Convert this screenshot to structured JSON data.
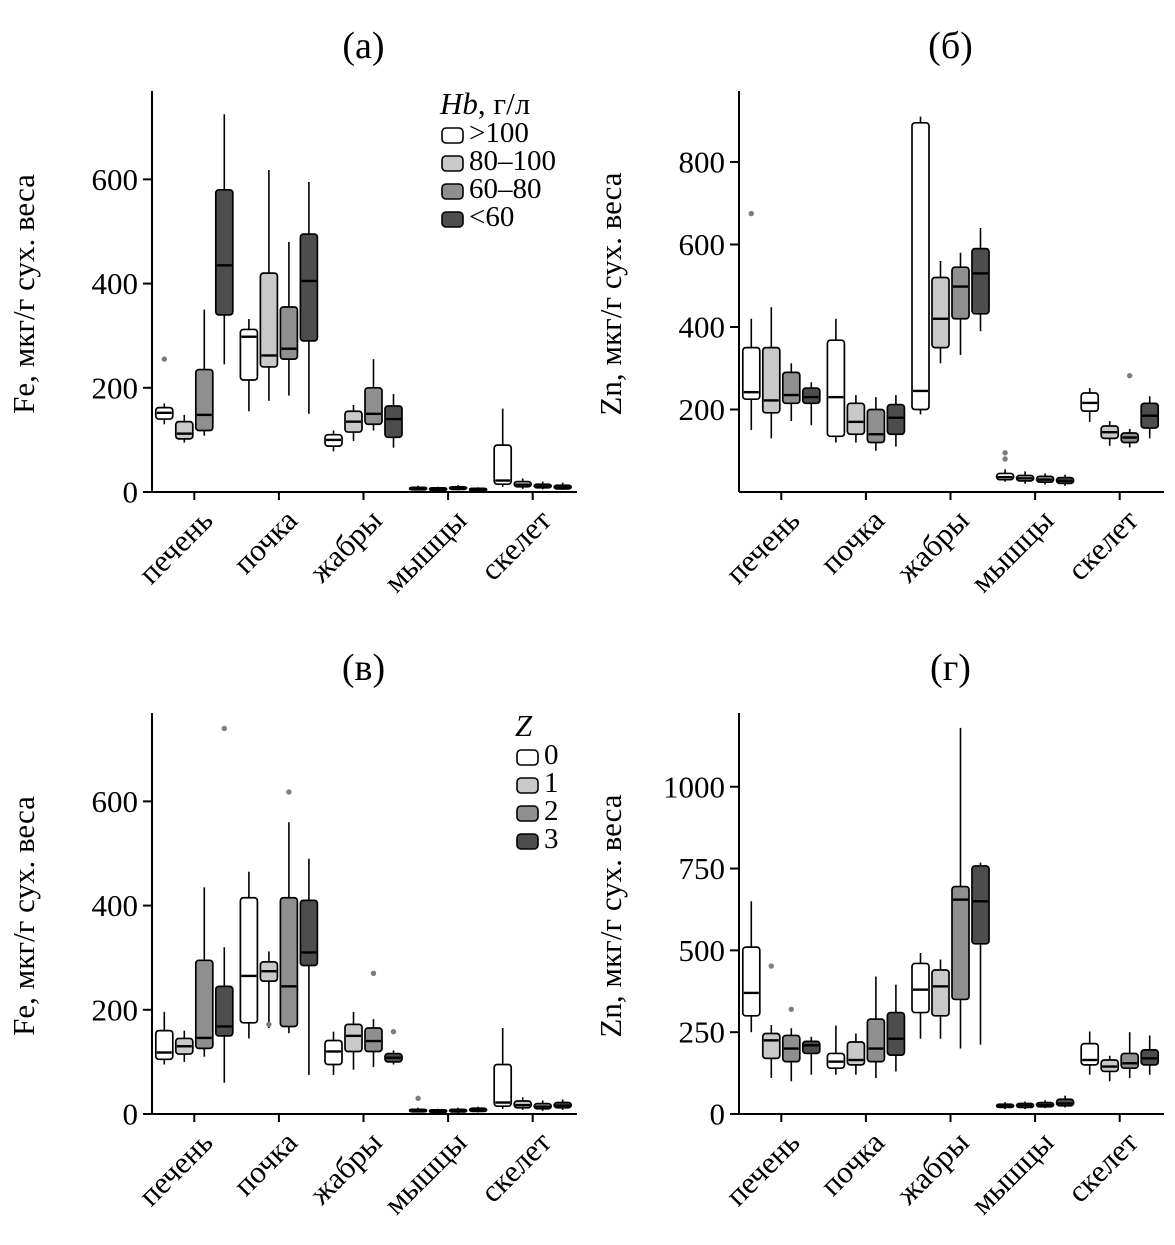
{
  "page": {
    "background": "#ffffff"
  },
  "colors": {
    "box_fills": [
      "#ffffff",
      "#c9c9c9",
      "#8f8f8f",
      "#4d4d4d"
    ],
    "box_stroke": "#000000",
    "outlier_dot": "#7d7d7d",
    "axis": "#000000",
    "text": "#000000"
  },
  "chart_data": [
    {
      "id": "a",
      "type": "box",
      "title": "(а)",
      "ylabel": "Fe, мкг/г сух. веса",
      "categories": [
        "печень",
        "почка",
        "жабры",
        "мышцы",
        "скелет"
      ],
      "ylim": [
        0,
        760
      ],
      "yticks": [
        0,
        200,
        400,
        600
      ],
      "grid": false,
      "legend": {
        "position": "top-right",
        "title_italic": "Hb",
        "title_rest": ", г/л",
        "entries": [
          ">100",
          "80–100",
          "60–80",
          "<60"
        ]
      },
      "series": [
        {
          "name": ">100",
          "boxes": [
            {
              "min": 130,
              "q1": 140,
              "med": 152,
              "q3": 162,
              "max": 170,
              "out": [
                255
              ]
            },
            {
              "min": 155,
              "q1": 215,
              "med": 298,
              "q3": 312,
              "max": 332
            },
            {
              "min": 78,
              "q1": 88,
              "med": 100,
              "q3": 110,
              "max": 118
            },
            {
              "min": 3,
              "q1": 5,
              "med": 7,
              "q3": 9,
              "max": 12
            },
            {
              "min": 10,
              "q1": 15,
              "med": 22,
              "q3": 90,
              "max": 160
            }
          ]
        },
        {
          "name": "80–100",
          "boxes": [
            {
              "min": 95,
              "q1": 102,
              "med": 112,
              "q3": 135,
              "max": 148
            },
            {
              "min": 175,
              "q1": 240,
              "med": 262,
              "q3": 420,
              "max": 618
            },
            {
              "min": 98,
              "q1": 115,
              "med": 135,
              "q3": 155,
              "max": 167
            },
            {
              "min": 3,
              "q1": 4,
              "med": 6,
              "q3": 8,
              "max": 10
            },
            {
              "min": 6,
              "q1": 10,
              "med": 14,
              "q3": 20,
              "max": 26
            }
          ]
        },
        {
          "name": "60–80",
          "boxes": [
            {
              "min": 108,
              "q1": 118,
              "med": 148,
              "q3": 235,
              "max": 350
            },
            {
              "min": 185,
              "q1": 255,
              "med": 275,
              "q3": 355,
              "max": 480
            },
            {
              "min": 118,
              "q1": 130,
              "med": 150,
              "q3": 200,
              "max": 255
            },
            {
              "min": 3,
              "q1": 5,
              "med": 7,
              "q3": 10,
              "max": 13
            },
            {
              "min": 5,
              "q1": 8,
              "med": 11,
              "q3": 15,
              "max": 20
            }
          ]
        },
        {
          "name": "<60",
          "boxes": [
            {
              "min": 245,
              "q1": 340,
              "med": 435,
              "q3": 580,
              "max": 725
            },
            {
              "min": 150,
              "q1": 290,
              "med": 405,
              "q3": 495,
              "max": 595
            },
            {
              "min": 85,
              "q1": 105,
              "med": 140,
              "q3": 165,
              "max": 188
            },
            {
              "min": 2,
              "q1": 4,
              "med": 5,
              "q3": 7,
              "max": 9
            },
            {
              "min": 4,
              "q1": 6,
              "med": 9,
              "q3": 13,
              "max": 18
            }
          ]
        }
      ]
    },
    {
      "id": "b",
      "type": "box",
      "title": "(б)",
      "ylabel": "Zn, мкг/г сух. веса",
      "categories": [
        "печень",
        "почка",
        "жабры",
        "мышцы",
        "скелет"
      ],
      "ylim": [
        0,
        960
      ],
      "yticks": [
        200,
        400,
        600,
        800
      ],
      "grid": false,
      "legend": null,
      "series": [
        {
          "name": ">100",
          "boxes": [
            {
              "min": 150,
              "q1": 225,
              "med": 242,
              "q3": 350,
              "max": 420,
              "out": [
                675
              ]
            },
            {
              "min": 120,
              "q1": 135,
              "med": 230,
              "q3": 368,
              "max": 420
            },
            {
              "min": 188,
              "q1": 200,
              "med": 245,
              "q3": 895,
              "max": 910
            },
            {
              "min": 25,
              "q1": 30,
              "med": 36,
              "q3": 45,
              "max": 55,
              "out": [
                80,
                95
              ]
            },
            {
              "min": 170,
              "q1": 196,
              "med": 216,
              "q3": 240,
              "max": 252
            }
          ]
        },
        {
          "name": "80–100",
          "boxes": [
            {
              "min": 130,
              "q1": 192,
              "med": 222,
              "q3": 350,
              "max": 448
            },
            {
              "min": 120,
              "q1": 140,
              "med": 170,
              "q3": 215,
              "max": 235
            },
            {
              "min": 312,
              "q1": 350,
              "med": 420,
              "q3": 520,
              "max": 560
            },
            {
              "min": 20,
              "q1": 27,
              "med": 33,
              "q3": 40,
              "max": 50
            },
            {
              "min": 112,
              "q1": 130,
              "med": 145,
              "q3": 160,
              "max": 172
            }
          ]
        },
        {
          "name": "60–80",
          "boxes": [
            {
              "min": 172,
              "q1": 215,
              "med": 235,
              "q3": 290,
              "max": 312
            },
            {
              "min": 100,
              "q1": 120,
              "med": 140,
              "q3": 200,
              "max": 230
            },
            {
              "min": 332,
              "q1": 420,
              "med": 498,
              "q3": 545,
              "max": 580
            },
            {
              "min": 18,
              "q1": 24,
              "med": 30,
              "q3": 38,
              "max": 45
            },
            {
              "min": 108,
              "q1": 120,
              "med": 132,
              "q3": 143,
              "max": 153,
              "out": [
                282
              ]
            }
          ]
        },
        {
          "name": "<60",
          "boxes": [
            {
              "min": 162,
              "q1": 215,
              "med": 230,
              "q3": 252,
              "max": 266
            },
            {
              "min": 110,
              "q1": 140,
              "med": 180,
              "q3": 212,
              "max": 235
            },
            {
              "min": 390,
              "q1": 432,
              "med": 530,
              "q3": 590,
              "max": 640
            },
            {
              "min": 15,
              "q1": 21,
              "med": 27,
              "q3": 35,
              "max": 42
            },
            {
              "min": 130,
              "q1": 155,
              "med": 185,
              "q3": 215,
              "max": 232
            }
          ]
        }
      ]
    },
    {
      "id": "v",
      "type": "box",
      "title": "(в)",
      "ylabel": "Fe, мкг/г сух. веса",
      "categories": [
        "печень",
        "почка",
        "жабры",
        "мышцы",
        "скелет"
      ],
      "ylim": [
        0,
        760
      ],
      "yticks": [
        0,
        200,
        400,
        600
      ],
      "grid": false,
      "legend": {
        "position": "top-right",
        "title_italic": "Z",
        "title_rest": "",
        "entries": [
          "0",
          "1",
          "2",
          "3"
        ]
      },
      "series": [
        {
          "name": "0",
          "boxes": [
            {
              "min": 95,
              "q1": 105,
              "med": 118,
              "q3": 160,
              "max": 196
            },
            {
              "min": 145,
              "q1": 175,
              "med": 265,
              "q3": 415,
              "max": 465
            },
            {
              "min": 75,
              "q1": 95,
              "med": 120,
              "q3": 141,
              "max": 158
            },
            {
              "min": 3,
              "q1": 5,
              "med": 7,
              "q3": 9,
              "max": 12,
              "out": [
                30
              ]
            },
            {
              "min": 10,
              "q1": 15,
              "med": 22,
              "q3": 95,
              "max": 165
            }
          ]
        },
        {
          "name": "1",
          "boxes": [
            {
              "min": 100,
              "q1": 115,
              "med": 130,
              "q3": 145,
              "max": 160
            },
            {
              "min": 165,
              "q1": 255,
              "med": 274,
              "q3": 292,
              "max": 312,
              "out": [
                172
              ]
            },
            {
              "min": 85,
              "q1": 120,
              "med": 150,
              "q3": 172,
              "max": 196
            },
            {
              "min": 3,
              "q1": 4,
              "med": 6,
              "q3": 8,
              "max": 10
            },
            {
              "min": 8,
              "q1": 12,
              "med": 17,
              "q3": 25,
              "max": 32
            }
          ]
        },
        {
          "name": "2",
          "boxes": [
            {
              "min": 110,
              "q1": 126,
              "med": 146,
              "q3": 295,
              "max": 435
            },
            {
              "min": 155,
              "q1": 168,
              "med": 245,
              "q3": 415,
              "max": 560,
              "out": [
                618
              ]
            },
            {
              "min": 90,
              "q1": 120,
              "med": 140,
              "q3": 165,
              "max": 182,
              "out": [
                270
              ]
            },
            {
              "min": 2,
              "q1": 4,
              "med": 6,
              "q3": 9,
              "max": 12
            },
            {
              "min": 6,
              "q1": 10,
              "med": 14,
              "q3": 20,
              "max": 26
            }
          ]
        },
        {
          "name": "3",
          "boxes": [
            {
              "min": 60,
              "q1": 150,
              "med": 168,
              "q3": 245,
              "max": 320,
              "out": [
                740
              ]
            },
            {
              "min": 75,
              "q1": 285,
              "med": 310,
              "q3": 410,
              "max": 490
            },
            {
              "min": 95,
              "q1": 100,
              "med": 108,
              "q3": 116,
              "max": 122,
              "out": [
                158
              ]
            },
            {
              "min": 3,
              "q1": 5,
              "med": 8,
              "q3": 11,
              "max": 14
            },
            {
              "min": 8,
              "q1": 12,
              "med": 16,
              "q3": 22,
              "max": 28
            }
          ]
        }
      ]
    },
    {
      "id": "g",
      "type": "box",
      "title": "(г)",
      "ylabel": "Zn, мкг/г сух. веса",
      "categories": [
        "печень",
        "почка",
        "жабры",
        "мышцы",
        "скелет"
      ],
      "ylim": [
        0,
        1210
      ],
      "yticks": [
        0,
        250,
        500,
        750,
        1000
      ],
      "grid": false,
      "legend": null,
      "series": [
        {
          "name": "0",
          "boxes": [
            {
              "min": 250,
              "q1": 300,
              "med": 370,
              "q3": 510,
              "max": 650
            },
            {
              "min": 120,
              "q1": 140,
              "med": 160,
              "q3": 185,
              "max": 270
            },
            {
              "min": 230,
              "q1": 310,
              "med": 380,
              "q3": 460,
              "max": 492
            },
            {
              "min": 15,
              "q1": 20,
              "med": 25,
              "q3": 30,
              "max": 36
            },
            {
              "min": 120,
              "q1": 150,
              "med": 165,
              "q3": 215,
              "max": 252
            }
          ]
        },
        {
          "name": "1",
          "boxes": [
            {
              "min": 110,
              "q1": 170,
              "med": 225,
              "q3": 246,
              "max": 272,
              "out": [
                452
              ]
            },
            {
              "min": 120,
              "q1": 150,
              "med": 165,
              "q3": 220,
              "max": 246
            },
            {
              "min": 230,
              "q1": 300,
              "med": 390,
              "q3": 440,
              "max": 472
            },
            {
              "min": 15,
              "q1": 20,
              "med": 26,
              "q3": 32,
              "max": 38
            },
            {
              "min": 100,
              "q1": 130,
              "med": 145,
              "q3": 165,
              "max": 178
            }
          ]
        },
        {
          "name": "2",
          "boxes": [
            {
              "min": 100,
              "q1": 160,
              "med": 200,
              "q3": 240,
              "max": 262,
              "out": [
                320
              ]
            },
            {
              "min": 110,
              "q1": 160,
              "med": 200,
              "q3": 290,
              "max": 420
            },
            {
              "min": 200,
              "q1": 350,
              "med": 655,
              "q3": 695,
              "max": 1180
            },
            {
              "min": 18,
              "q1": 22,
              "med": 28,
              "q3": 35,
              "max": 42
            },
            {
              "min": 110,
              "q1": 140,
              "med": 155,
              "q3": 185,
              "max": 250
            }
          ]
        },
        {
          "name": "3",
          "boxes": [
            {
              "min": 120,
              "q1": 185,
              "med": 210,
              "q3": 222,
              "max": 236
            },
            {
              "min": 130,
              "q1": 180,
              "med": 230,
              "q3": 310,
              "max": 395
            },
            {
              "min": 212,
              "q1": 520,
              "med": 650,
              "q3": 758,
              "max": 768
            },
            {
              "min": 20,
              "q1": 25,
              "med": 32,
              "q3": 45,
              "max": 56
            },
            {
              "min": 120,
              "q1": 150,
              "med": 170,
              "q3": 196,
              "max": 240
            }
          ]
        }
      ]
    }
  ]
}
